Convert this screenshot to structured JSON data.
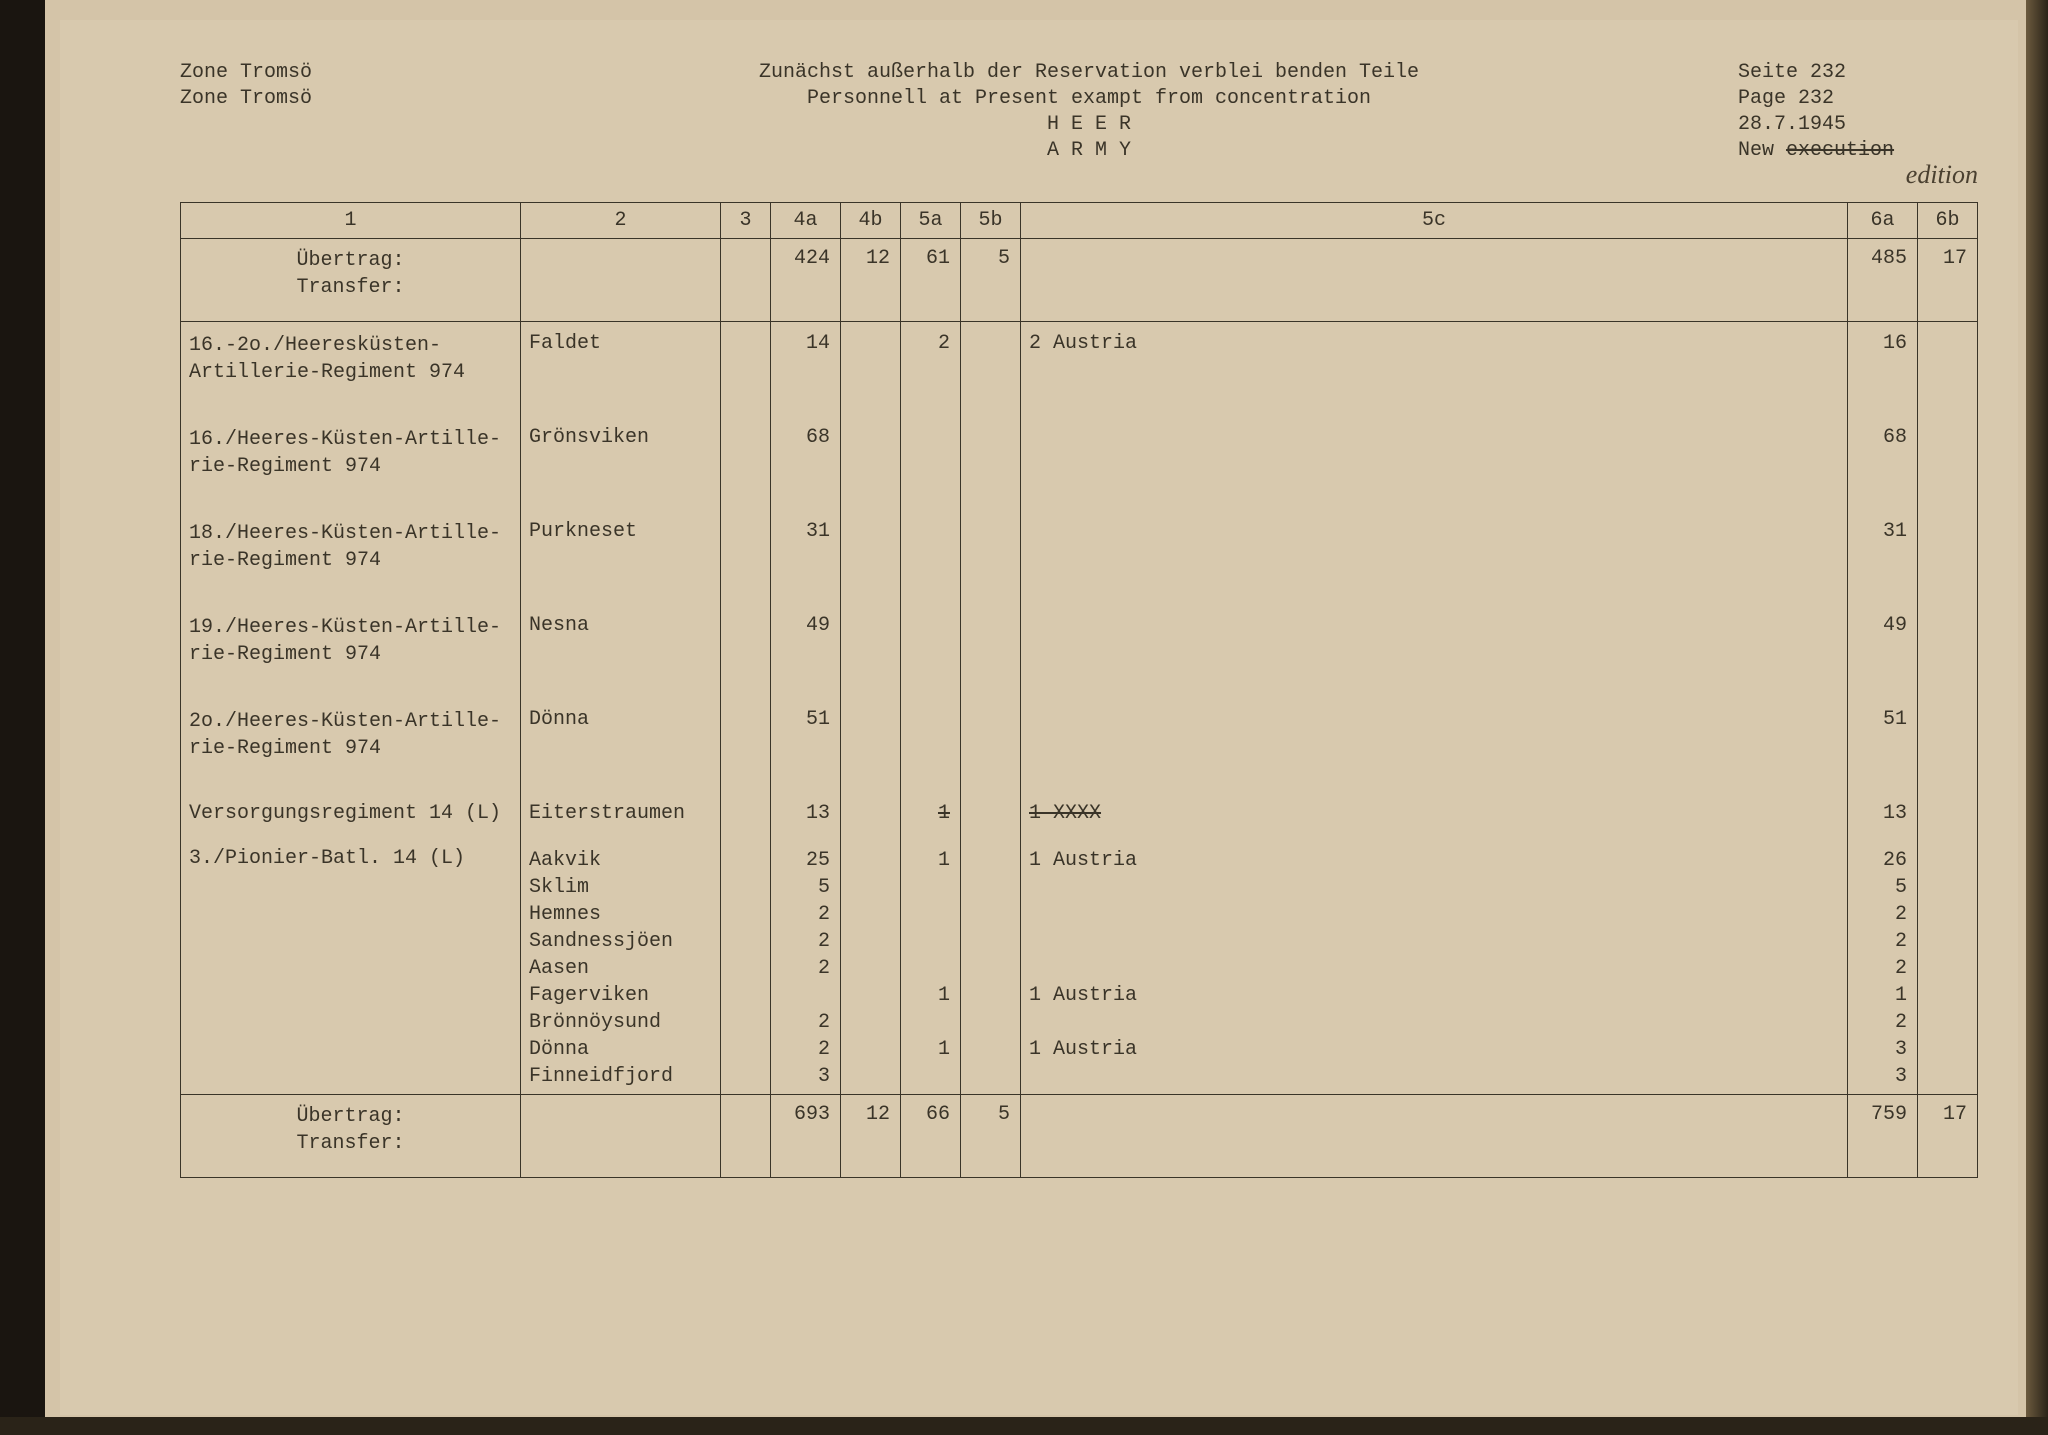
{
  "header": {
    "zone_de": "Zone Tromsö",
    "zone_en": "Zone Tromsö",
    "title_de": "Zunächst außerhalb der Reservation verblei benden Teile",
    "title_en": "Personnell at Present exampt from concentration",
    "heer": "H E E R",
    "army": "A R M Y",
    "seite": "Seite 232",
    "page": "Page  232",
    "date": "28.7.1945",
    "new_label": "New",
    "execution_strike": "execution",
    "edition_hand": "edition"
  },
  "columns": {
    "c1": "1",
    "c2": "2",
    "c3": "3",
    "c4a": "4a",
    "c4b": "4b",
    "c5a": "5a",
    "c5b": "5b",
    "c5c": "5c",
    "c6a": "6a",
    "c6b": "6b"
  },
  "transfer_top": {
    "label": "Übertrag:\nTransfer:",
    "c4a": "424",
    "c4b": "12",
    "c5a": "61",
    "c5b": "5",
    "c6a": "485",
    "c6b": "17"
  },
  "rows": [
    {
      "c1": "16.-2o./Heeresküsten-\n  Artillerie-Regiment 974",
      "c2": "Faldet",
      "c4a": "14",
      "c5a": "2",
      "c5c": "2 Austria",
      "c6a": "16"
    },
    {
      "c1": "16./Heeres-Küsten-Artille-\n  rie-Regiment 974",
      "c2": "Grönsviken",
      "c4a": "68",
      "c6a": "68"
    },
    {
      "c1": "18./Heeres-Küsten-Artille-\n  rie-Regiment 974",
      "c2": "Purkneset",
      "c4a": "31",
      "c6a": "31"
    },
    {
      "c1": "19./Heeres-Küsten-Artille-\n  rie-Regiment 974",
      "c2": "Nesna",
      "c4a": "49",
      "c6a": "49"
    },
    {
      "c1": "2o./Heeres-Küsten-Artille-\n  rie-Regiment 974",
      "c2": "Dönna",
      "c4a": "51",
      "c6a": "51"
    },
    {
      "c1": "Versorgungsregiment 14 (L)",
      "c2": "Eiterstraumen",
      "c4a": "13",
      "c5a_strike": "1",
      "c5c_strike": "1 XXXX",
      "c6a": "13"
    }
  ],
  "pionier": {
    "c1": "3./Pionier-Batl. 14 (L)",
    "c2": "Aakvik\nSklim\nHemnes\nSandnessjöen\nAasen\nFagerviken\nBrönnöysund\nDönna\nFinneidfjord",
    "c4a": "25\n5\n2\n2\n2\n\n2\n2\n3",
    "c5a": "1\n\n\n\n\n1\n\n1\n",
    "c5c": "1 Austria\n\n\n\n\n1 Austria\n\n1 Austria\n",
    "c6a": "26\n5\n2\n2\n2\n1\n2\n3\n3"
  },
  "transfer_bottom": {
    "label": "Übertrag:\nTransfer:",
    "c4a": "693",
    "c4b": "12",
    "c5a": "66",
    "c5b": "5",
    "c6a": "759",
    "c6b": "17"
  },
  "colors": {
    "paper": "#d8c9ae",
    "ink": "#3a3428"
  }
}
